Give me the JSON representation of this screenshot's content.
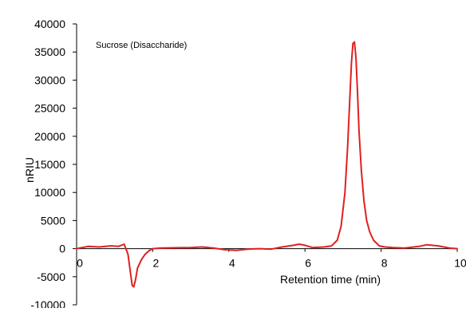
{
  "chart_data": {
    "type": "line",
    "title": "",
    "xlabel": "Retention time (min)",
    "ylabel": "nRIU",
    "xlim": [
      0,
      10
    ],
    "ylim": [
      -10000,
      40000
    ],
    "xticks": [
      0,
      2,
      4,
      6,
      8,
      10
    ],
    "yticks": [
      -10000,
      -5000,
      0,
      5000,
      10000,
      15000,
      20000,
      25000,
      30000,
      35000,
      40000
    ],
    "annotation": "Sucrose (Disaccharide)",
    "grid": false,
    "legend": "none",
    "series": [
      {
        "color": "#e02020",
        "x": [
          0.0,
          0.3,
          0.6,
          0.9,
          1.1,
          1.25,
          1.35,
          1.42,
          1.46,
          1.5,
          1.55,
          1.6,
          1.7,
          1.8,
          1.9,
          2.0,
          2.2,
          2.6,
          3.0,
          3.3,
          3.6,
          3.9,
          4.2,
          4.5,
          4.8,
          5.1,
          5.4,
          5.7,
          5.85,
          6.0,
          6.2,
          6.5,
          6.7,
          6.85,
          6.95,
          7.05,
          7.12,
          7.18,
          7.22,
          7.26,
          7.3,
          7.34,
          7.38,
          7.42,
          7.48,
          7.55,
          7.62,
          7.7,
          7.8,
          7.95,
          8.1,
          8.3,
          8.6,
          9.0,
          9.2,
          9.5,
          9.8,
          10.0
        ],
        "y": [
          0,
          400,
          300,
          500,
          400,
          800,
          -1000,
          -4500,
          -6500,
          -6800,
          -5500,
          -3500,
          -2000,
          -1000,
          -400,
          0,
          100,
          150,
          200,
          300,
          100,
          -200,
          -300,
          -100,
          0,
          -100,
          300,
          600,
          800,
          600,
          200,
          300,
          500,
          1500,
          4000,
          10000,
          18000,
          27000,
          33000,
          36500,
          36800,
          34000,
          28000,
          21000,
          14000,
          8500,
          5000,
          3000,
          1500,
          500,
          300,
          200,
          100,
          400,
          700,
          500,
          100,
          0
        ]
      }
    ]
  }
}
